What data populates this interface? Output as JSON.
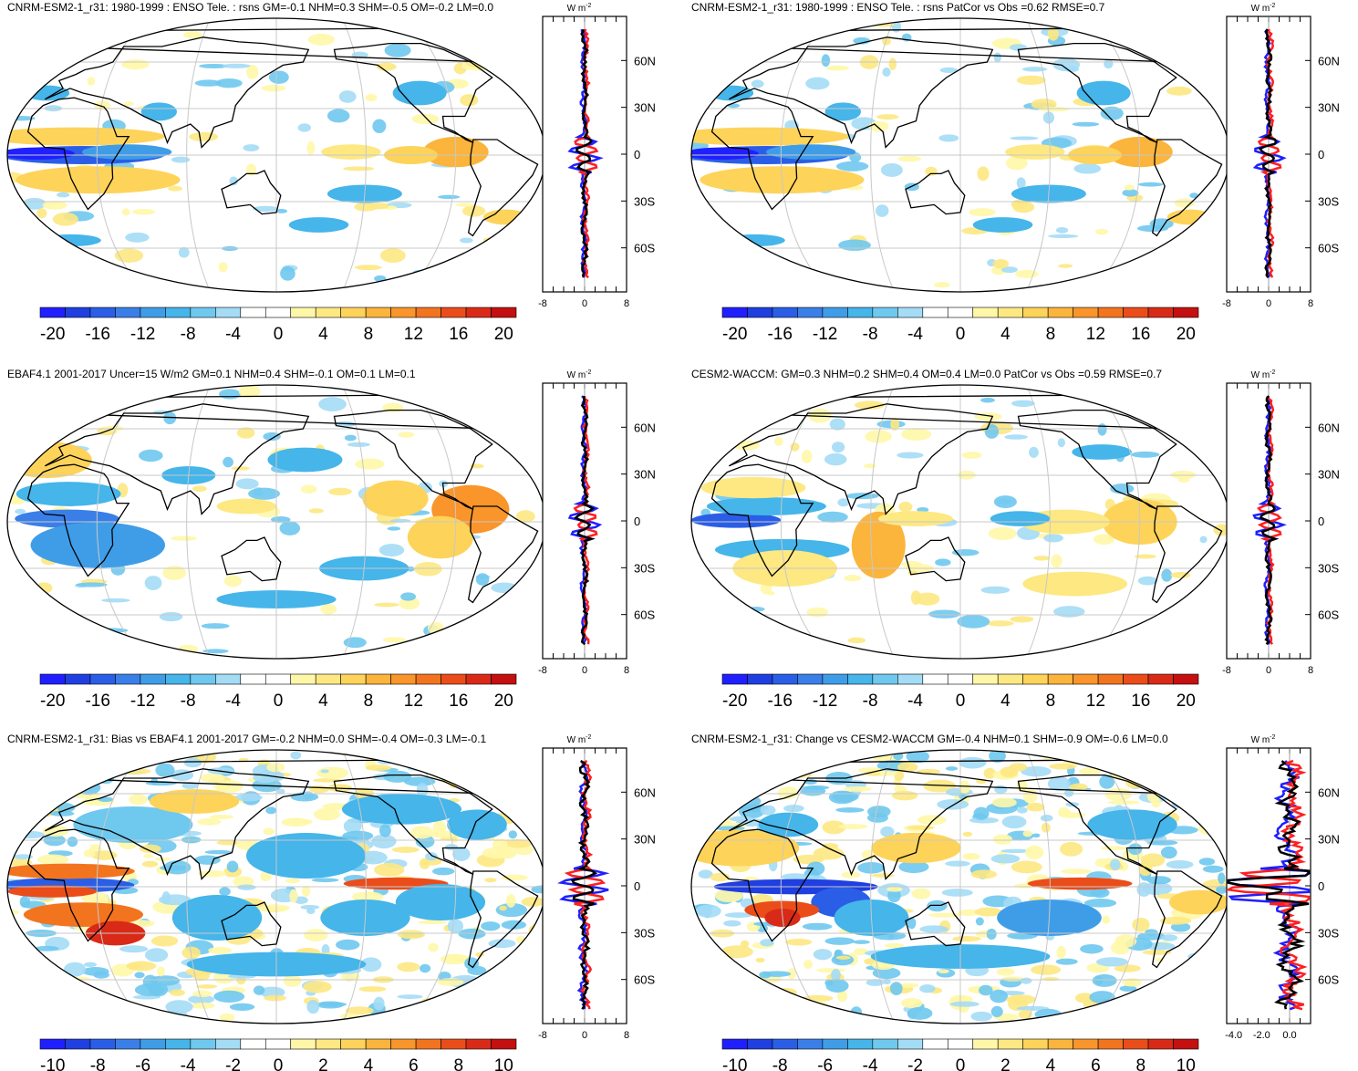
{
  "chart_data": [
    {
      "type": "heatmap",
      "title": "CNRM-ESM2-1_r31: 1980-1999 : ENSO Tele. : rsns GM=-0.1 NHM=0.3 SHM=-0.5 OM=-0.2 LM=0.0",
      "variable": "rsns",
      "colorbar_ticks": [
        "-20",
        "-16",
        "-12",
        "-8",
        "-4",
        "0",
        "4",
        "8",
        "12",
        "16",
        "20"
      ],
      "colorbar_range": [
        -20,
        20
      ],
      "zonal_mean": {
        "units": "W m-2",
        "lat_labels": [
          "60N",
          "30N",
          "0",
          "30S",
          "60S"
        ],
        "x_ticks": [
          "-8",
          "0",
          "8"
        ],
        "xlim": [
          -8,
          8
        ]
      }
    },
    {
      "type": "heatmap",
      "title": "CNRM-ESM2-1_r31: 1980-1999 : ENSO Tele. : rsns PatCor vs Obs =0.62 RMSE=0.7",
      "variable": "rsns",
      "colorbar_ticks": [
        "-20",
        "-16",
        "-12",
        "-8",
        "-4",
        "0",
        "4",
        "8",
        "12",
        "16",
        "20"
      ],
      "colorbar_range": [
        -20,
        20
      ],
      "zonal_mean": {
        "units": "W m-2",
        "lat_labels": [
          "60N",
          "30N",
          "0",
          "30S",
          "60S"
        ],
        "x_ticks": [
          "-8",
          "0",
          "8"
        ],
        "xlim": [
          -8,
          8
        ]
      }
    },
    {
      "type": "heatmap",
      "title": "EBAF4.1 2001-2017 Uncer=15 W/m2 GM=0.1 NHM=0.4 SHM=-0.1 OM=0.1 LM=0.1",
      "variable": "rsns",
      "colorbar_ticks": [
        "-20",
        "-16",
        "-12",
        "-8",
        "-4",
        "0",
        "4",
        "8",
        "12",
        "16",
        "20"
      ],
      "colorbar_range": [
        -20,
        20
      ],
      "zonal_mean": {
        "units": "W m-2",
        "lat_labels": [
          "60N",
          "30N",
          "0",
          "30S",
          "60S"
        ],
        "x_ticks": [
          "-8",
          "0",
          "8"
        ],
        "xlim": [
          -8,
          8
        ]
      }
    },
    {
      "type": "heatmap",
      "title": "CESM2-WACCM: GM=0.3 NHM=0.2 SHM=0.4 OM=0.4 LM=0.0 PatCor vs Obs =0.59 RMSE=0.7",
      "variable": "rsns",
      "colorbar_ticks": [
        "-20",
        "-16",
        "-12",
        "-8",
        "-4",
        "0",
        "4",
        "8",
        "12",
        "16",
        "20"
      ],
      "colorbar_range": [
        -20,
        20
      ],
      "zonal_mean": {
        "units": "W m-2",
        "lat_labels": [
          "60N",
          "30N",
          "0",
          "30S",
          "60S"
        ],
        "x_ticks": [
          "-8",
          "0",
          "8"
        ],
        "xlim": [
          -8,
          8
        ]
      }
    },
    {
      "type": "heatmap",
      "title": "CNRM-ESM2-1_r31: Bias vs EBAF4.1 2001-2017 GM=-0.2 NHM=0.0 SHM=-0.4 OM=-0.3 LM=-0.1",
      "variable": "rsns",
      "colorbar_ticks": [
        "-10",
        "-8",
        "-6",
        "-4",
        "-2",
        "0",
        "2",
        "4",
        "6",
        "8",
        "10"
      ],
      "colorbar_range": [
        -10,
        10
      ],
      "zonal_mean": {
        "units": "W m-2",
        "lat_labels": [
          "60N",
          "30N",
          "0",
          "30S",
          "60S"
        ],
        "x_ticks": [
          "-8",
          "0",
          "8"
        ],
        "xlim": [
          -8,
          8
        ]
      }
    },
    {
      "type": "heatmap",
      "title": "CNRM-ESM2-1_r31: Change vs CESM2-WACCM GM=-0.4 NHM=0.1 SHM=-0.9 OM=-0.6 LM=0.0",
      "variable": "rsns",
      "colorbar_ticks": [
        "-10",
        "-8",
        "-6",
        "-4",
        "-2",
        "0",
        "2",
        "4",
        "6",
        "8",
        "10"
      ],
      "colorbar_range": [
        -10,
        10
      ],
      "zonal_mean": {
        "units": "W m-2",
        "lat_labels": [
          "60N",
          "30N",
          "0",
          "30S",
          "60S"
        ],
        "x_ticks": [
          "-4.0",
          "-2.0",
          "0.0"
        ],
        "xlim": [
          -4.5,
          1.5
        ]
      }
    }
  ],
  "palette": [
    "#1f1fff",
    "#1f3fe0",
    "#2a5ee6",
    "#3a7fe8",
    "#3f9de8",
    "#45b5ea",
    "#6fc8ee",
    "#a4dcf6",
    "#ffffff",
    "#ffffff",
    "#fff7a8",
    "#fde882",
    "#fdd35a",
    "#fbb43c",
    "#f9952a",
    "#f2741f",
    "#ea4d1a",
    "#d92a18",
    "#c41010"
  ],
  "line_colors": {
    "model": "#ff1f1f",
    "obs": "#1f1fff",
    "mean": "#000000"
  }
}
